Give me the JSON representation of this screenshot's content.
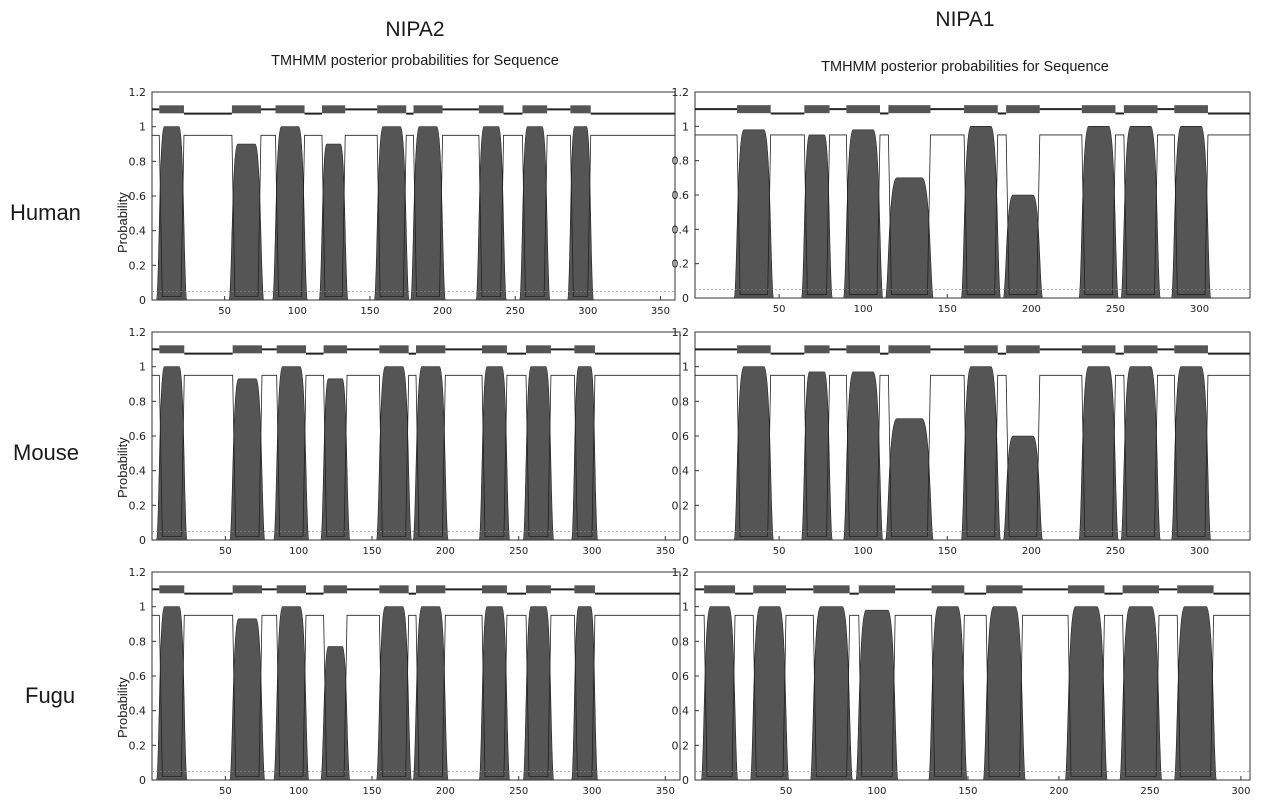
{
  "figure": {
    "columns": [
      "NIPA2",
      "NIPA1"
    ],
    "subtitles": [
      "TMHMM posterior probabilities for Sequence",
      "TMHMM posterior probabilities for Sequence"
    ],
    "rows": [
      "Human",
      "Mouse",
      "Fugu"
    ],
    "ylabel": "Probability"
  },
  "colors": {
    "tm": "#555555",
    "line": "#222222",
    "thin": "#888888",
    "frame": "#333333"
  },
  "chart_data": [
    {
      "type": "area",
      "gene": "NIPA2",
      "species": "Human",
      "xlim": [
        0,
        360
      ],
      "ylim": [
        0,
        1.2
      ],
      "xticks": [
        50,
        100,
        150,
        200,
        250,
        300,
        350
      ],
      "yticks": [
        0,
        0.2,
        0.4,
        0.6,
        0.8,
        1,
        1.2
      ],
      "ylabel": "Probability",
      "tm_helices": [
        [
          5,
          22,
          1.0
        ],
        [
          55,
          75,
          0.9
        ],
        [
          85,
          105,
          1.0
        ],
        [
          117,
          133,
          0.9
        ],
        [
          155,
          175,
          1.0
        ],
        [
          180,
          200,
          1.0
        ],
        [
          225,
          242,
          1.0
        ],
        [
          255,
          272,
          1.0
        ],
        [
          288,
          302,
          1.0
        ]
      ]
    },
    {
      "type": "area",
      "gene": "NIPA1",
      "species": "Human",
      "xlim": [
        0,
        330
      ],
      "ylim": [
        0,
        1.2
      ],
      "xticks": [
        50,
        100,
        150,
        200,
        250,
        300
      ],
      "yticks": [
        0,
        0.2,
        0.4,
        0.6,
        0.8,
        1,
        1.2
      ],
      "ylabel": "",
      "tm_helices": [
        [
          25,
          45,
          0.98
        ],
        [
          65,
          80,
          0.95
        ],
        [
          90,
          110,
          0.98
        ],
        [
          115,
          140,
          0.7
        ],
        [
          160,
          180,
          1.0
        ],
        [
          185,
          205,
          0.6
        ],
        [
          230,
          250,
          1.0
        ],
        [
          255,
          275,
          1.0
        ],
        [
          285,
          305,
          1.0
        ]
      ]
    },
    {
      "type": "area",
      "gene": "NIPA2",
      "species": "Mouse",
      "xlim": [
        0,
        360
      ],
      "ylim": [
        0,
        1.2
      ],
      "xticks": [
        50,
        100,
        150,
        200,
        250,
        300,
        350
      ],
      "yticks": [
        0,
        0.2,
        0.4,
        0.6,
        0.8,
        1,
        1.2
      ],
      "ylabel": "Probability",
      "tm_helices": [
        [
          5,
          22,
          1.0
        ],
        [
          55,
          75,
          0.93
        ],
        [
          85,
          105,
          1.0
        ],
        [
          117,
          133,
          0.93
        ],
        [
          155,
          175,
          1.0
        ],
        [
          180,
          200,
          1.0
        ],
        [
          225,
          242,
          1.0
        ],
        [
          255,
          272,
          1.0
        ],
        [
          288,
          302,
          1.0
        ]
      ]
    },
    {
      "type": "area",
      "gene": "NIPA1",
      "species": "Mouse",
      "xlim": [
        0,
        330
      ],
      "ylim": [
        0,
        1.2
      ],
      "xticks": [
        50,
        100,
        150,
        200,
        250,
        300
      ],
      "yticks": [
        0,
        0.2,
        0.4,
        0.6,
        0.8,
        1,
        1.2
      ],
      "ylabel": "",
      "tm_helices": [
        [
          25,
          45,
          1.0
        ],
        [
          65,
          80,
          0.97
        ],
        [
          90,
          110,
          0.97
        ],
        [
          115,
          140,
          0.7
        ],
        [
          160,
          180,
          1.0
        ],
        [
          185,
          205,
          0.6
        ],
        [
          230,
          250,
          1.0
        ],
        [
          255,
          275,
          1.0
        ],
        [
          285,
          305,
          1.0
        ]
      ]
    },
    {
      "type": "area",
      "gene": "NIPA2",
      "species": "Fugu",
      "xlim": [
        0,
        360
      ],
      "ylim": [
        0,
        1.2
      ],
      "xticks": [
        50,
        100,
        150,
        200,
        250,
        300,
        350
      ],
      "yticks": [
        0,
        0.2,
        0.4,
        0.6,
        0.8,
        1,
        1.2
      ],
      "ylabel": "Probability",
      "tm_helices": [
        [
          5,
          22,
          1.0
        ],
        [
          55,
          75,
          0.93
        ],
        [
          85,
          105,
          1.0
        ],
        [
          117,
          133,
          0.77
        ],
        [
          155,
          175,
          1.0
        ],
        [
          180,
          200,
          1.0
        ],
        [
          225,
          242,
          1.0
        ],
        [
          255,
          272,
          1.0
        ],
        [
          288,
          302,
          1.0
        ]
      ]
    },
    {
      "type": "area",
      "gene": "NIPA1",
      "species": "Fugu",
      "xlim": [
        0,
        305
      ],
      "ylim": [
        0,
        1.2
      ],
      "xticks": [
        50,
        100,
        150,
        200,
        250,
        300
      ],
      "yticks": [
        0,
        0.2,
        0.4,
        0.6,
        0.8,
        1,
        1.2
      ],
      "ylabel": "",
      "tm_helices": [
        [
          5,
          22,
          1.0
        ],
        [
          32,
          50,
          1.0
        ],
        [
          65,
          85,
          1.0
        ],
        [
          90,
          110,
          0.98
        ],
        [
          130,
          148,
          1.0
        ],
        [
          160,
          180,
          1.0
        ],
        [
          205,
          225,
          1.0
        ],
        [
          235,
          255,
          1.0
        ],
        [
          265,
          285,
          1.0
        ]
      ]
    }
  ]
}
